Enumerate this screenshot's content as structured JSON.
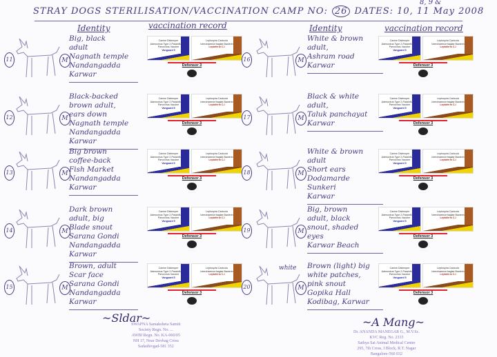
{
  "header": {
    "title": "STRAY DOGS STERILISATION/VACCINATION CAMP NO:",
    "camp_no": "26",
    "dates_label": "DATES:",
    "dates_above": "8, 9 &",
    "dates": "10, 11 May 2008"
  },
  "columns": {
    "identity": "Identity",
    "vaccination": "vaccination record"
  },
  "vaccine_label": {
    "vac1_lines": [
      "Canine Distemper",
      "Adenovirus Type 2-Parainfluenza",
      "Parvovirus Vaccine"
    ],
    "vac1_name": "Vanguard 5",
    "vac2_lines": [
      "Leptospira Canicola",
      "Icterohaemorrhagiae Bacterin"
    ],
    "vac2_name": "Leptoferm C-I",
    "rabies": "Defensor 3"
  },
  "left_entries": [
    {
      "num": "11",
      "sex": "M",
      "lines": [
        "Big, black",
        "adult",
        "Nagnath temple",
        "Nandangadda",
        "Karwar"
      ]
    },
    {
      "num": "12",
      "sex": "M",
      "lines": [
        "Black-backed",
        "brown adult,",
        "ears down",
        "Nagnath temple",
        "Nandangadda",
        "Karwar"
      ]
    },
    {
      "num": "13",
      "sex": "M",
      "lines": [
        "Big brown",
        "coffee-back",
        "Fish Market",
        "Nandangadda",
        "Karwar"
      ]
    },
    {
      "num": "14",
      "sex": "M",
      "lines": [
        "Dark brown",
        "adult, big",
        "Blade snout",
        "Sarana Gondi",
        "Nandangadda",
        "Karwar"
      ]
    },
    {
      "num": "15",
      "sex": "M",
      "lines": [
        "Brown, adult",
        "Scar face",
        "Sarana Gondi",
        "Nandangadda",
        "Karwar"
      ]
    }
  ],
  "right_entries": [
    {
      "num": "16",
      "sex": "M",
      "lines": [
        "White & brown",
        "adult,",
        "Ashram road",
        "Karwar"
      ]
    },
    {
      "num": "17",
      "sex": "M",
      "lines": [
        "Black & white",
        "adult,",
        "Taluk panchayat",
        "Karwar"
      ]
    },
    {
      "num": "18",
      "sex": "M",
      "lines": [
        "White & brown",
        "adult",
        "Short ears",
        "Dodamarde",
        "Sunkeri",
        "Karwar"
      ]
    },
    {
      "num": "19",
      "sex": "M",
      "lines": [
        "Big, brown",
        "adult, black",
        "snout, shaded",
        "eyes",
        "Karwar Beach"
      ]
    },
    {
      "num": "20",
      "sex": "M",
      "lines": [
        "Brown (light) big",
        "white patches,",
        "pink snout",
        "Gopika Hall",
        "Kodibag, Karwar"
      ],
      "note": "white"
    }
  ],
  "stamp_left": {
    "lines": [
      "SWAPNA Samaksheta Samiti",
      "Society Regn. No. ...",
      "AWBI Regn. No. KA-060/05",
      "NH 17, Near Devbag Cross",
      "Sadashivgad-581 352"
    ]
  },
  "stamp_right": {
    "lines": [
      "Dr. ANANDA MANEGAR G., M.V.Sc.",
      "KVC Reg. No. 2333",
      "Sathya Sai Animal Medical Centre",
      "295, 7th Cross, I Block, R.T. Nagar",
      "Bangalore-560 032"
    ]
  },
  "colors": {
    "ink": "#43397f",
    "vaccine_blue": "#2a2a9a",
    "vaccine_brown": "#a85a22",
    "vaccine_yellow": "#f0d400",
    "red_line": "#e0202a",
    "stamp": "#8a70c0"
  }
}
